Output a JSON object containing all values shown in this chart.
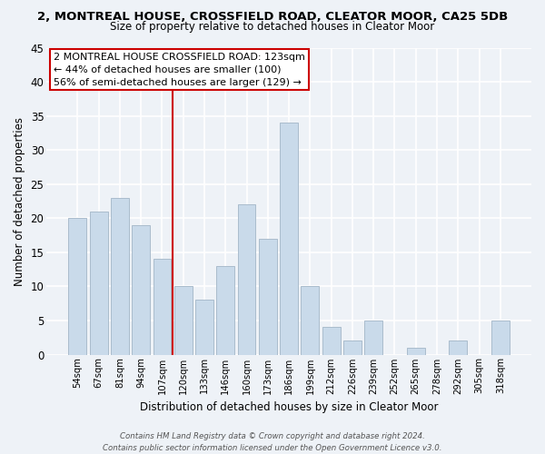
{
  "title1": "2, MONTREAL HOUSE, CROSSFIELD ROAD, CLEATOR MOOR, CA25 5DB",
  "title2": "Size of property relative to detached houses in Cleator Moor",
  "xlabel": "Distribution of detached houses by size in Cleator Moor",
  "ylabel": "Number of detached properties",
  "bar_labels": [
    "54sqm",
    "67sqm",
    "81sqm",
    "94sqm",
    "107sqm",
    "120sqm",
    "133sqm",
    "146sqm",
    "160sqm",
    "173sqm",
    "186sqm",
    "199sqm",
    "212sqm",
    "226sqm",
    "239sqm",
    "252sqm",
    "265sqm",
    "278sqm",
    "292sqm",
    "305sqm",
    "318sqm"
  ],
  "bar_values": [
    20,
    21,
    23,
    19,
    14,
    10,
    8,
    13,
    22,
    17,
    34,
    10,
    4,
    2,
    5,
    0,
    1,
    0,
    2,
    0,
    5
  ],
  "bar_color": "#c9daea",
  "bar_edge_color": "#aabccc",
  "vline_index": 5,
  "vline_color": "#cc0000",
  "annotation_title": "2 MONTREAL HOUSE CROSSFIELD ROAD: 123sqm",
  "annotation_line1": "← 44% of detached houses are smaller (100)",
  "annotation_line2": "56% of semi-detached houses are larger (129) →",
  "annotation_box_color": "#ffffff",
  "annotation_box_edge": "#cc0000",
  "bg_color": "#eef2f7",
  "ylim": [
    0,
    45
  ],
  "yticks": [
    0,
    5,
    10,
    15,
    20,
    25,
    30,
    35,
    40,
    45
  ],
  "footer1": "Contains HM Land Registry data © Crown copyright and database right 2024.",
  "footer2": "Contains public sector information licensed under the Open Government Licence v3.0."
}
